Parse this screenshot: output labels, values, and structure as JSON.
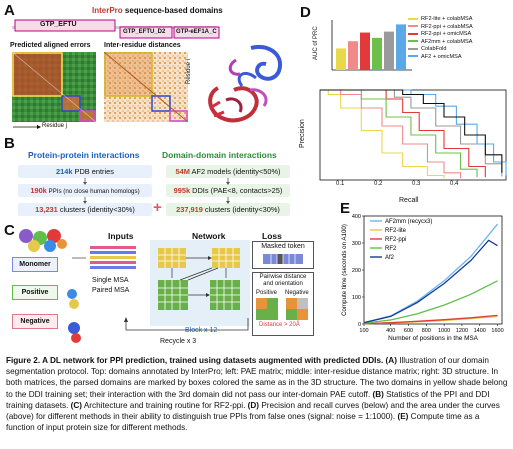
{
  "panel_a": {
    "letter": "A",
    "title_brand": "InterPro",
    "title_rest": " sequence-based domains",
    "domains": [
      "GTP_EFTU",
      "GTP_EFTU_D2",
      "GTP-eEF1A_C"
    ],
    "pae_label": "Predicted aligned errors",
    "dist_label": "Inter-residue distances",
    "axis_residue_i": "Residue i",
    "axis_residue_j": "Residue j"
  },
  "panel_b": {
    "letter": "B",
    "ppi_title": "Protein-protein interactions",
    "ddi_title": "Domain-domain interactions",
    "ppi_row1_num": "214k",
    "ppi_row1_text": " PDB entries",
    "ppi_row2_num": "190k",
    "ppi_row2_text": " PPIs (no close human homologs)",
    "ppi_row3_num": "13,231",
    "ppi_row3_text": " clusters (identity<30%)",
    "ddi_row1_num": "54M",
    "ddi_row1_text": " AF2 models (identity<50%)",
    "ddi_row2_num": "995k",
    "ddi_row2_text": " DDIs (PAE<8, contacts>25)",
    "ddi_row3_num": "237,919",
    "ddi_row3_text": " clusters (identity<30%)",
    "plus": "+"
  },
  "panel_c": {
    "letter": "C",
    "inputs_label": "Inputs",
    "network_label": "Network",
    "loss_label": "Loss",
    "monomer": "Monomer",
    "positive": "Positive",
    "negative": "Negative",
    "single_msa": "Single MSA",
    "paired_msa": "Paired MSA",
    "block": "Block x 12",
    "recycle": "Recycle x 3",
    "masked_token": "Masked token",
    "pairwise": "Pairwise distance and orientation",
    "loss_positive": "Positive",
    "loss_negative": "Negative",
    "distance_note": "Distance > 20Å"
  },
  "panel_d": {
    "letter": "D",
    "auc_label": "AUC of PRC",
    "precision_label": "Precision",
    "recall_label": "Recall",
    "legend": [
      {
        "name": "RF2-lite + colabMSA",
        "color": "#e8d84a"
      },
      {
        "name": "RF2-ppi + colabMSA",
        "color": "#f08a8a"
      },
      {
        "name": "RF2-ppi + omicMSA",
        "color": "#e23a3a"
      },
      {
        "name": "AF2mm + colabMSA",
        "color": "#6cc04a"
      },
      {
        "name": "ColabFold",
        "color": "#9a9a9a"
      },
      {
        "name": "AF2 + omicMSA",
        "color": "#5aa8e8"
      }
    ],
    "chart_data": {
      "type": "bar",
      "title": "",
      "ylabel": "AUC of PRC",
      "categories": [
        "RF2-lite + colabMSA",
        "RF2-ppi + colabMSA",
        "RF2-ppi + omicMSA",
        "AF2mm + colabMSA",
        "ColabFold",
        "AF2 + omicMSA"
      ],
      "values": [
        0.45,
        0.6,
        0.78,
        0.67,
        0.8,
        0.95
      ],
      "ylim": [
        0,
        1
      ]
    },
    "x_ticks": [
      "0.1",
      "0.2",
      "0.3",
      "0.4"
    ]
  },
  "panel_e": {
    "letter": "E",
    "chart_data": {
      "type": "line",
      "title": "",
      "xlabel": "Number of positions in the MSA",
      "ylabel": "Compute time (seconds on A100)",
      "xlim": [
        100,
        1650
      ],
      "ylim": [
        0,
        400
      ],
      "x_ticks": [
        100,
        400,
        600,
        800,
        1000,
        1200,
        1400,
        1600
      ],
      "y_ticks": [
        0,
        100,
        200,
        300,
        400
      ],
      "series": [
        {
          "name": "AF2mm (recycx3)",
          "color": "#6ab8e8",
          "x": [
            100,
            400,
            700,
            1000,
            1300,
            1500,
            1600
          ],
          "y": [
            5,
            30,
            85,
            160,
            250,
            330,
            370
          ]
        },
        {
          "name": "RF2-lite",
          "color": "#e6c84a",
          "x": [
            100,
            400,
            700,
            1000,
            1300,
            1600
          ],
          "y": [
            1,
            4,
            8,
            13,
            20,
            28
          ]
        },
        {
          "name": "RF2-ppi",
          "color": "#e23a3a",
          "x": [
            100,
            400,
            700,
            1000,
            1300,
            1600
          ],
          "y": [
            1,
            5,
            10,
            16,
            23,
            32
          ]
        },
        {
          "name": "RF2",
          "color": "#5fbf4a",
          "x": [
            100,
            400,
            700,
            1000,
            1300,
            1600
          ],
          "y": [
            3,
            15,
            38,
            70,
            110,
            160
          ]
        },
        {
          "name": "Af2",
          "color": "#1a3a9a",
          "x": [
            100,
            400,
            700,
            1000,
            1300,
            1500,
            1600
          ],
          "y": [
            5,
            28,
            80,
            150,
            235,
            310,
            290
          ]
        }
      ]
    }
  },
  "caption": {
    "bold_1": "Figure 2. A DL network for PPI prediction, trained using datasets augmented with predicted DDIs. (A)",
    "text_1": " Illustration of our domain segmentation protocol. Top: domains annotated by InterPro; left: PAE matrix; middle: inter-residue distance matrix; right: 3D structure. In both matrices, the parsed domains are marked by boxes colored the same as in the 3D structure. The two domains in yellow shade belong to the DDI training set; their interaction with the 3rd domain did not pass our inter-domain PAE cutoff. ",
    "bold_2": "(B)",
    "text_2": " Statistics of the PPI and DDI training datasets. ",
    "bold_3": "(C)",
    "text_3": " Architecture and training routine for RF2-ppi. ",
    "bold_4": "(D)",
    "text_4": " Precision and recall curves (below) and the area under the curves (above) for different methods in their ability to distinguish true PPIs from false ones (signal: noise = 1:1000). ",
    "bold_5": "(E)",
    "text_5": " Compute time as a function of input protein size for different methods."
  }
}
